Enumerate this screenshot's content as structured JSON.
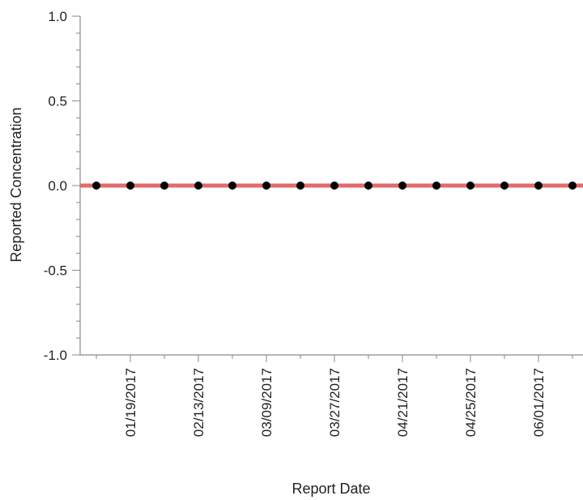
{
  "chart_data": {
    "type": "scatter",
    "xlabel": "Report Date",
    "ylabel": "Reported Concentration",
    "ylim": [
      -1.0,
      1.0
    ],
    "yticks": [
      "1.0",
      "0.5",
      "0.0",
      "-0.5",
      "-1.0"
    ],
    "ytick_values": [
      1.0,
      0.5,
      0.0,
      -0.5,
      -1.0
    ],
    "xtick_labels": [
      "01/19/2017",
      "02/13/2017",
      "03/09/2017",
      "03/27/2017",
      "04/21/2017",
      "04/25/2017",
      "06/01/2017"
    ],
    "series": [
      {
        "values": [
          0,
          0,
          0,
          0,
          0,
          0,
          0,
          0,
          0,
          0,
          0,
          0,
          0,
          0,
          0
        ]
      }
    ],
    "reference_line": {
      "y": 0.0,
      "color": "#e05a5a"
    },
    "point_color": "#000000",
    "grid": false
  }
}
